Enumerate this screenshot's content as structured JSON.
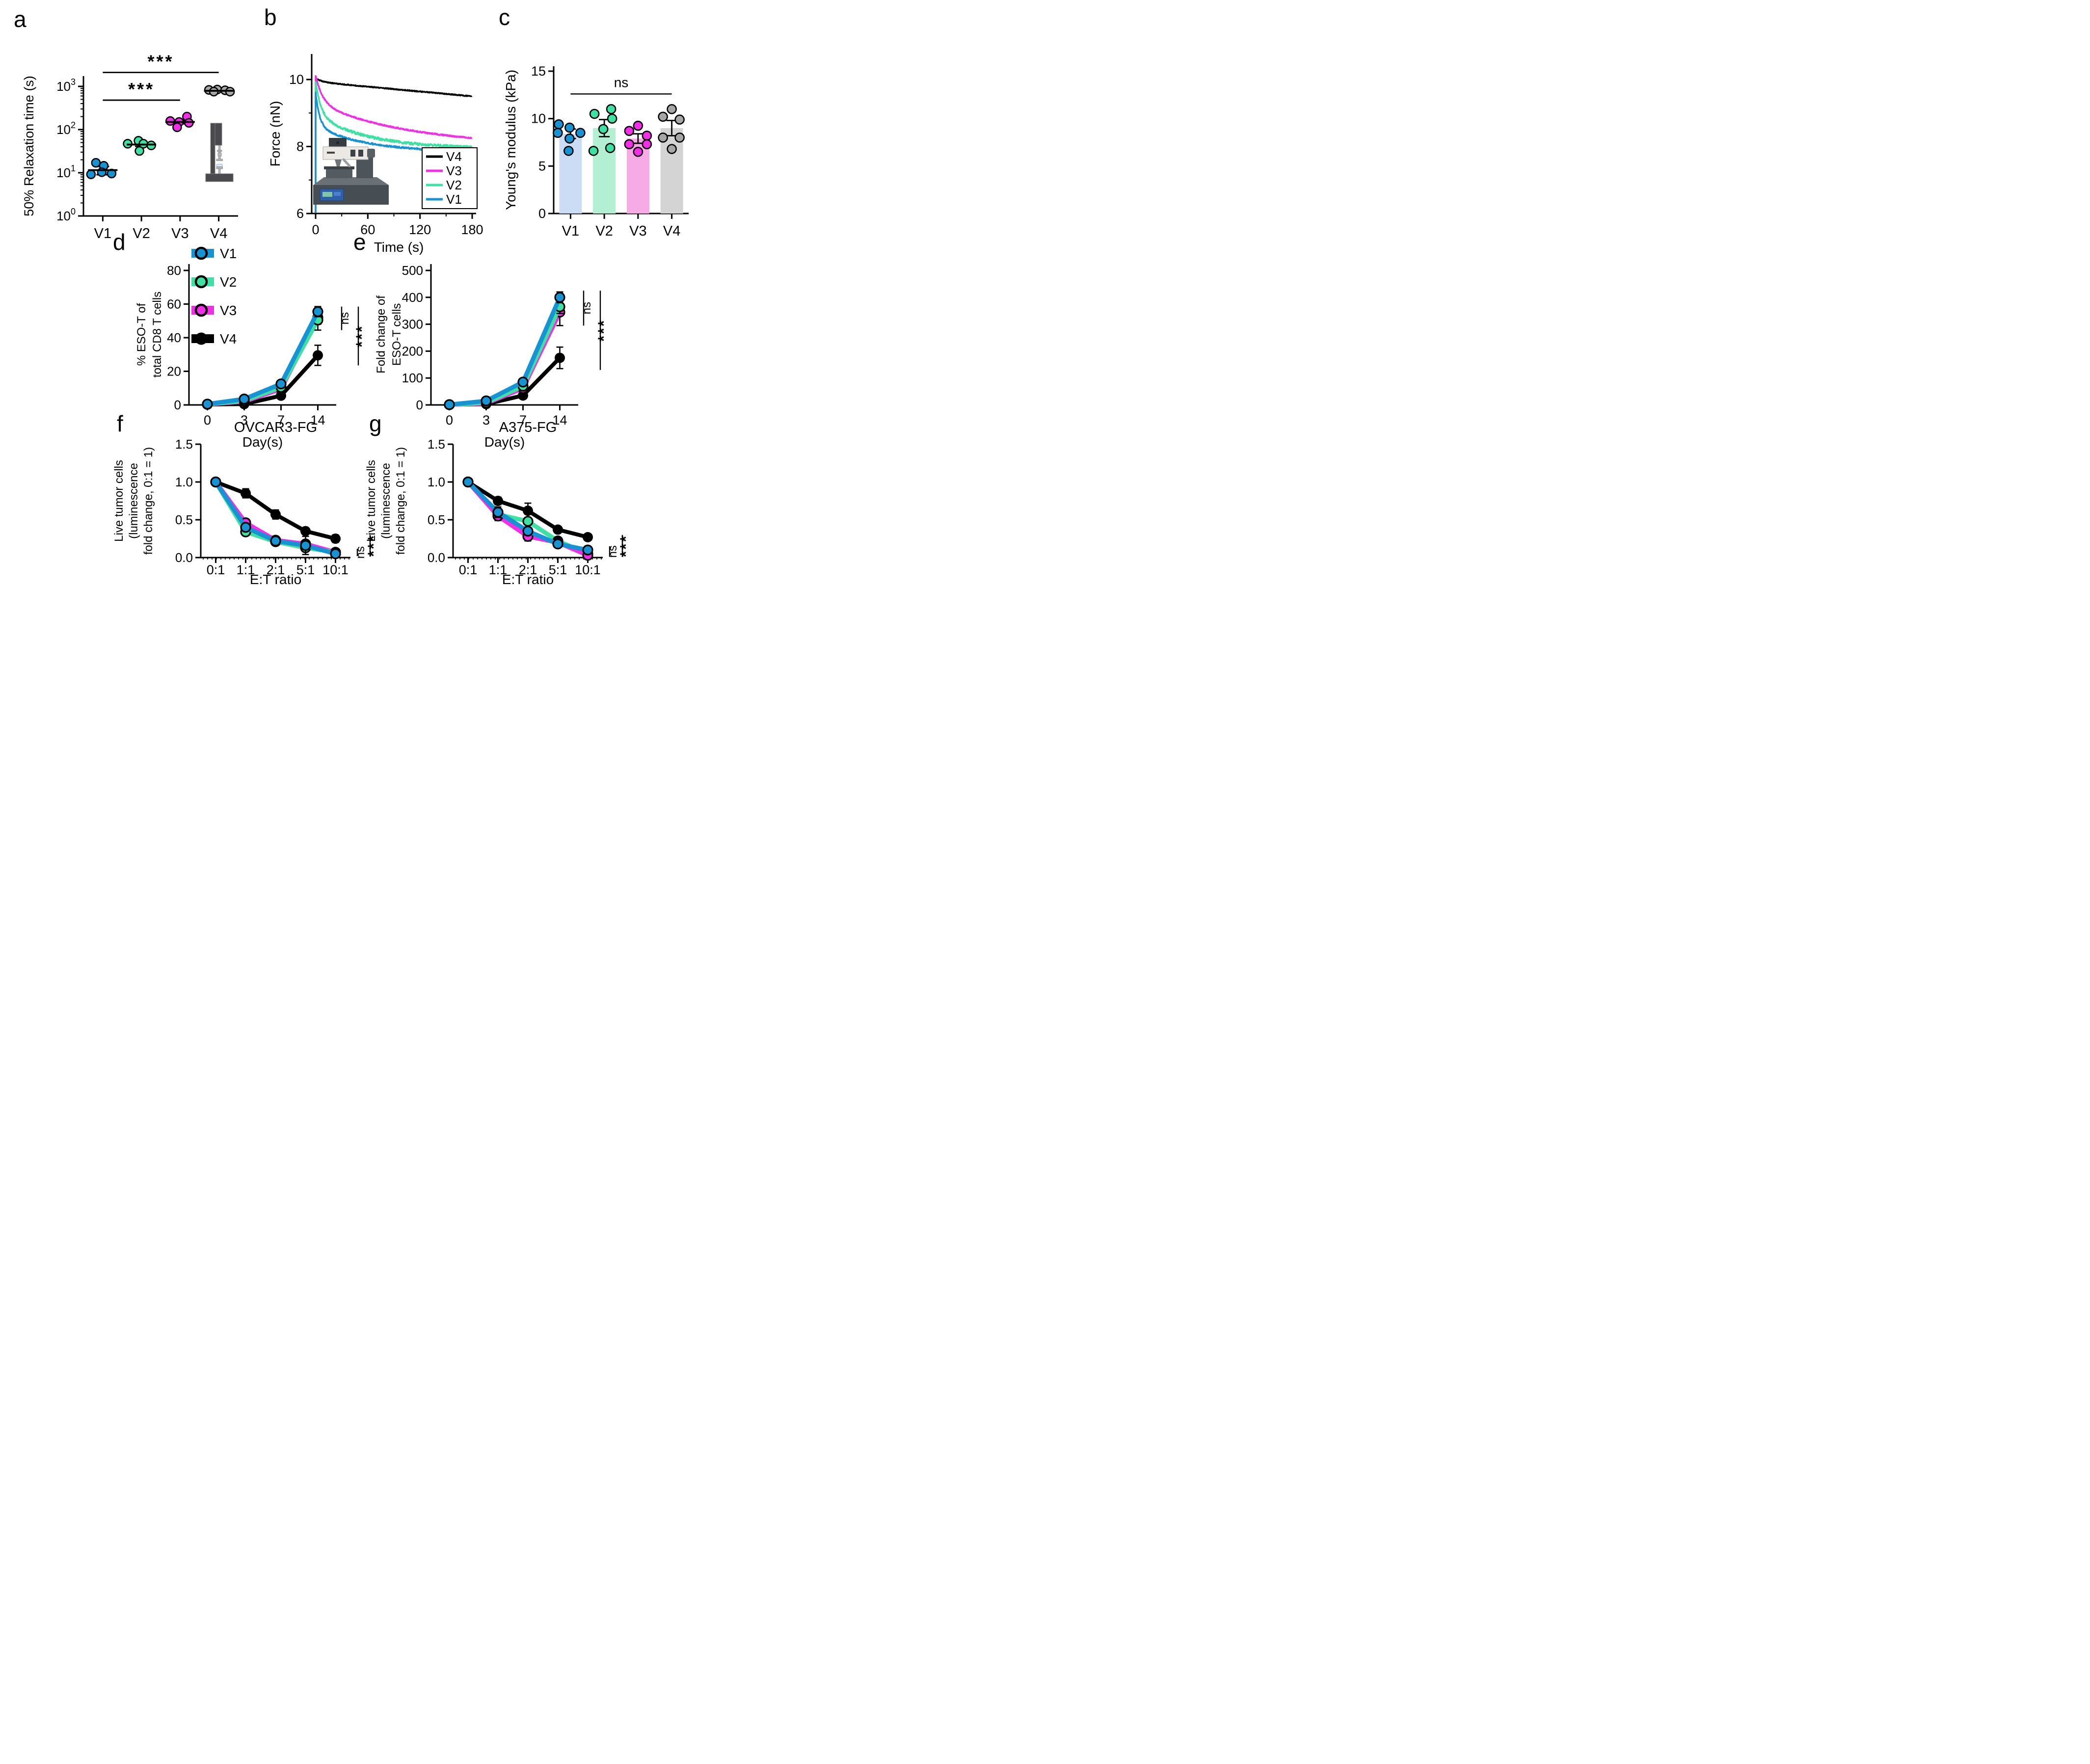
{
  "figure": {
    "background": "#ffffff"
  },
  "palette": {
    "v1_blue": "#1793d3",
    "v2_green": "#3fe0a3",
    "v3_magenta": "#f12fe6",
    "v4_black": "#000000",
    "v4_gray_dots": "#a6a6a6"
  },
  "insets": {
    "a": "compression-tester-illustration",
    "b": "afm-microscope-illustration"
  },
  "chart_data": [
    {
      "id": "a",
      "letter": "a",
      "type": "jitter_log",
      "ylabel": "50% Relaxation time (s)",
      "yticks_exp": [
        0,
        1,
        2,
        3
      ],
      "categories": [
        "V1",
        "V2",
        "V3",
        "V4"
      ],
      "dot_colors": [
        "#1793d3",
        "#3fe0a3",
        "#f12fe6",
        "#a6a6a6"
      ],
      "points": [
        [
          [
            -14,
            17
          ],
          [
            2,
            14.5
          ],
          [
            -24,
            9.2
          ],
          [
            -2,
            10.3
          ],
          [
            18,
            9.6
          ]
        ],
        [
          [
            -6,
            55
          ],
          [
            -28,
            47
          ],
          [
            4,
            47
          ],
          [
            20,
            43
          ],
          [
            -4,
            32
          ]
        ],
        [
          [
            14,
            200
          ],
          [
            -20,
            158
          ],
          [
            -2,
            150
          ],
          [
            18,
            143
          ],
          [
            -6,
            113
          ]
        ],
        [
          [
            -20,
            828
          ],
          [
            -3,
            845
          ],
          [
            13,
            812
          ],
          [
            -10,
            757
          ],
          [
            23,
            755
          ]
        ]
      ],
      "mean": [
        11.5,
        45,
        150,
        790
      ],
      "err": [
        2.5,
        4,
        14,
        45
      ],
      "sig": [
        {
          "from": 0,
          "to": 2,
          "v": 480,
          "label": "***"
        },
        {
          "from": 0,
          "to": 3,
          "v": 2100,
          "label": "***"
        }
      ]
    },
    {
      "id": "b",
      "letter": "b",
      "type": "decay",
      "xlabel": "Time (s)",
      "ylabel": "Force (nN)",
      "xlim": [
        0,
        180
      ],
      "xticks": [
        0,
        60,
        120,
        180
      ],
      "xminor": [
        30,
        90,
        150
      ],
      "ylim": [
        6,
        10
      ],
      "yticks": [
        6,
        8,
        10
      ],
      "yminor": [
        7,
        9
      ],
      "series": [
        {
          "name": "V4",
          "color": "#000000",
          "base": 9.93,
          "slope": 0.0024,
          "a1": 0.1,
          "tau1": 8,
          "a2": 0,
          "tau2": 1,
          "noise": 0.013,
          "spike": false
        },
        {
          "name": "V3",
          "color": "#f12fe6",
          "base": 8.0,
          "slope": 0,
          "a1": 1.3,
          "tau1": 110,
          "a2": 0.82,
          "tau2": 8,
          "noise": 0.02,
          "spike": true
        },
        {
          "name": "V2",
          "color": "#3fe0a3",
          "base": 7.93,
          "slope": 0,
          "a1": 1.02,
          "tau1": 60,
          "a2": 1.0,
          "tau2": 6,
          "noise": 0.038,
          "spike": true
        },
        {
          "name": "V1",
          "color": "#1793d3",
          "base": 7.84,
          "slope": 0,
          "a1": 0.78,
          "tau1": 55,
          "a2": 1.0,
          "tau2": 4.5,
          "noise": 0.026,
          "spike": true
        }
      ],
      "legend": [
        {
          "label": "V4",
          "color": "#000000"
        },
        {
          "label": "V3",
          "color": "#f12fe6"
        },
        {
          "label": "V2",
          "color": "#3fe0a3"
        },
        {
          "label": "V1",
          "color": "#1793d3"
        }
      ]
    },
    {
      "id": "c",
      "letter": "c",
      "type": "bar_jitter",
      "ylabel": "Young's modulus (kPa)",
      "ylim": [
        0,
        15
      ],
      "yticks": [
        0,
        5,
        10,
        15
      ],
      "categories": [
        "V1",
        "V2",
        "V3",
        "V4"
      ],
      "bar_fill": [
        "#cbdcf5",
        "#b2efd3",
        "#f6abe6",
        "#d4d4d4"
      ],
      "dot_colors": [
        "#1793d3",
        "#3fe0a3",
        "#f12fe6",
        "#a6a6a6"
      ],
      "bars": [
        8.4,
        9.0,
        7.9,
        9.0
      ],
      "err": [
        0.5,
        0.9,
        0.5,
        0.8
      ],
      "points": [
        [
          [
            -24,
            9.4
          ],
          [
            -2,
            9.05
          ],
          [
            -26,
            8.5
          ],
          [
            20,
            8.5
          ],
          [
            -2,
            7.9
          ],
          [
            -4,
            6.6
          ]
        ],
        [
          [
            -20,
            10.5
          ],
          [
            14,
            11.0
          ],
          [
            16,
            10.0
          ],
          [
            -2,
            8.9
          ],
          [
            -22,
            6.6
          ],
          [
            12,
            6.9
          ]
        ],
        [
          [
            -18,
            8.7
          ],
          [
            0,
            9.25
          ],
          [
            18,
            8.2
          ],
          [
            -18,
            7.3
          ],
          [
            18,
            7.3
          ],
          [
            0,
            6.5
          ]
        ],
        [
          [
            -18,
            10.2
          ],
          [
            0,
            11.0
          ],
          [
            16,
            9.9
          ],
          [
            -18,
            8.0
          ],
          [
            16,
            8.0
          ],
          [
            0,
            6.8
          ]
        ]
      ],
      "sig": {
        "label": "ns",
        "v": 12.6,
        "from": 0,
        "to": 3
      }
    },
    {
      "id": "d",
      "letter": "d",
      "type": "line_cat",
      "xlabel": "Day(s)",
      "ylabel_lines": [
        "% ESO-T of",
        "total CD8 T cells"
      ],
      "categories": [
        "0",
        "3",
        "7",
        "14"
      ],
      "ylim": [
        0,
        80
      ],
      "yticks": [
        0,
        20,
        40,
        60,
        80
      ],
      "ytick_dp": 0,
      "series": [
        {
          "name": "V4",
          "color": "#000000",
          "marker": "filled",
          "values": [
            0.3,
            0.5,
            5.5,
            29.5
          ],
          "err": [
            0,
            0,
            1,
            6
          ]
        },
        {
          "name": "V3",
          "color": "#f12fe6",
          "marker": "open",
          "values": [
            0.4,
            2.0,
            9.5,
            52.0
          ],
          "err": [
            0,
            0,
            1,
            4
          ]
        },
        {
          "name": "V2",
          "color": "#3fe0a3",
          "marker": "open",
          "values": [
            0.4,
            2.5,
            10.5,
            50.5
          ],
          "err": [
            0,
            0,
            1,
            6
          ]
        },
        {
          "name": "V1",
          "color": "#1793d3",
          "marker": "open",
          "values": [
            0.5,
            3.5,
            12.5,
            55.5
          ],
          "err": [
            0,
            0,
            1.5,
            3
          ]
        }
      ],
      "legend": [
        {
          "label": "V1",
          "color": "#1793d3",
          "filled": false
        },
        {
          "label": "V2",
          "color": "#3fe0a3",
          "filled": false
        },
        {
          "label": "V3",
          "color": "#f12fe6",
          "filled": false
        },
        {
          "label": "V4",
          "color": "#000000",
          "filled": true
        }
      ],
      "sig": {
        "ns_label": "ns",
        "ns_range": [
          58.5,
          44.5
        ],
        "star_label": "***",
        "star_range": [
          58.5,
          23.5
        ]
      }
    },
    {
      "id": "e",
      "letter": "e",
      "type": "line_cat",
      "xlabel": "Day(s)",
      "ylabel_lines": [
        "Fold change of",
        "ESO-T cells"
      ],
      "categories": [
        "0",
        "3",
        "7",
        "14"
      ],
      "ylim": [
        0,
        500
      ],
      "yticks": [
        0,
        100,
        200,
        300,
        400,
        500
      ],
      "ytick_dp": 0,
      "series": [
        {
          "name": "V4",
          "color": "#000000",
          "marker": "filled",
          "values": [
            1,
            3,
            35,
            175
          ],
          "err": [
            0,
            0,
            5,
            40
          ]
        },
        {
          "name": "V3",
          "color": "#f12fe6",
          "marker": "open",
          "values": [
            1,
            6,
            62,
            345
          ],
          "err": [
            0,
            0,
            5,
            50
          ]
        },
        {
          "name": "V2",
          "color": "#3fe0a3",
          "marker": "open",
          "values": [
            1,
            8,
            70,
            365
          ],
          "err": [
            0,
            0,
            6,
            25
          ]
        },
        {
          "name": "V1",
          "color": "#1793d3",
          "marker": "open",
          "values": [
            1,
            15,
            85,
            400
          ],
          "err": [
            0,
            0,
            8,
            20
          ]
        }
      ],
      "sig": {
        "ns_label": "ns",
        "ns_range": [
          425,
          295
        ],
        "star_label": "***",
        "star_range": [
          425,
          130
        ]
      }
    },
    {
      "id": "f",
      "letter": "f",
      "type": "line_cat",
      "title": "OVCAR3-FG",
      "xlabel": "E:T ratio",
      "ylabel_lines": [
        "Live tumor cells",
        "(luminescence",
        "fold change, 0:1 = 1)"
      ],
      "categories": [
        "0:1",
        "1:1",
        "2:1",
        "5:1",
        "10:1"
      ],
      "ylim": [
        0,
        1.5
      ],
      "yticks": [
        0,
        0.5,
        1.0,
        1.5
      ],
      "ytick_dp": 1,
      "baseline_minor_ticks": true,
      "series": [
        {
          "name": "V4",
          "color": "#000000",
          "marker": "filled",
          "values": [
            1.0,
            0.85,
            0.57,
            0.35,
            0.25
          ],
          "err": [
            0,
            0.06,
            0.06,
            0.03,
            0.05
          ]
        },
        {
          "name": "V3",
          "color": "#f12fe6",
          "marker": "open",
          "values": [
            1.0,
            0.46,
            0.23,
            0.18,
            0.07
          ],
          "err": [
            0,
            0.05,
            0.03,
            0.03,
            0.02
          ]
        },
        {
          "name": "V2",
          "color": "#3fe0a3",
          "marker": "open",
          "values": [
            1.0,
            0.34,
            0.21,
            0.13,
            0.07
          ],
          "err": [
            0,
            0.05,
            0.03,
            0.04,
            0.02
          ]
        },
        {
          "name": "V1",
          "color": "#1793d3",
          "marker": "open",
          "values": [
            1.0,
            0.4,
            0.22,
            0.16,
            0.05
          ],
          "err": [
            0,
            0.04,
            0.04,
            0.12,
            0.03
          ]
        }
      ],
      "sig": {
        "ns_label": "ns",
        "ns_range": [
          0.115,
          0.02
        ],
        "star_label": "***",
        "star_range": [
          0.3,
          0.02
        ]
      }
    },
    {
      "id": "g",
      "letter": "g",
      "type": "line_cat",
      "title": "A375-FG",
      "xlabel": "E:T ratio",
      "ylabel_lines": [
        "Live tumor cells",
        "(luminescence",
        "fold change, 0:1 = 1)"
      ],
      "categories": [
        "0:1",
        "1:1",
        "2:1",
        "5:1",
        "10:1"
      ],
      "ylim": [
        0,
        1.5
      ],
      "yticks": [
        0,
        0.5,
        1.0,
        1.5
      ],
      "ytick_dp": 1,
      "baseline_minor_ticks": true,
      "series": [
        {
          "name": "V4",
          "color": "#000000",
          "marker": "filled",
          "values": [
            1.0,
            0.75,
            0.62,
            0.37,
            0.27
          ],
          "err": [
            0,
            0.05,
            0.1,
            0.04,
            0.03
          ]
        },
        {
          "name": "V2",
          "color": "#3fe0a3",
          "marker": "open",
          "values": [
            1.0,
            0.57,
            0.48,
            0.22,
            0.05
          ],
          "err": [
            0,
            0.05,
            0.1,
            0.04,
            0.02
          ]
        },
        {
          "name": "V3",
          "color": "#f12fe6",
          "marker": "open",
          "values": [
            1.0,
            0.55,
            0.28,
            0.2,
            0.03
          ],
          "err": [
            0,
            0.06,
            0.06,
            0.03,
            0.02
          ]
        },
        {
          "name": "V1",
          "color": "#1793d3",
          "marker": "open",
          "values": [
            1.0,
            0.6,
            0.35,
            0.18,
            0.1
          ],
          "err": [
            0,
            0.07,
            0.05,
            0.04,
            0.05
          ]
        }
      ],
      "sig": {
        "ns_label": "ns",
        "ns_range": [
          0.15,
          0.01
        ],
        "star_label": "***",
        "star_range": [
          0.3,
          0.01
        ]
      }
    }
  ]
}
